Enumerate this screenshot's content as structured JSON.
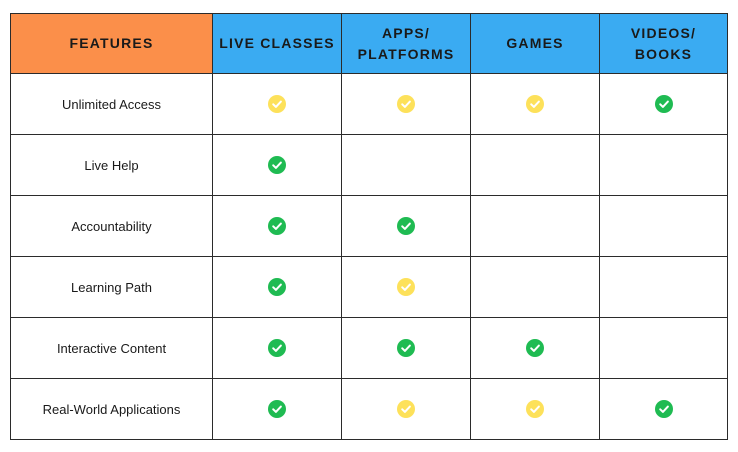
{
  "colors": {
    "features_header_bg": "#fb8f4a",
    "column_header_bg": "#3aabf2",
    "check_green": "#1fbb52",
    "check_yellow": "#fde15a"
  },
  "table": {
    "headers": [
      "FEATURES",
      "LIVE CLASSES",
      "APPS/\nPLATFORMS",
      "GAMES",
      "VIDEOS/\nBOOKS"
    ],
    "rows": [
      {
        "feature": "Unlimited Access",
        "marks": [
          "yellow",
          "yellow",
          "yellow",
          "green"
        ]
      },
      {
        "feature": "Live Help",
        "marks": [
          "green",
          "",
          "",
          ""
        ]
      },
      {
        "feature": "Accountability",
        "marks": [
          "green",
          "green",
          "",
          ""
        ]
      },
      {
        "feature": "Learning Path",
        "marks": [
          "green",
          "yellow",
          "",
          ""
        ]
      },
      {
        "feature": "Interactive Content",
        "marks": [
          "green",
          "green",
          "green",
          ""
        ]
      },
      {
        "feature": "Real-World Applications",
        "marks": [
          "green",
          "yellow",
          "yellow",
          "green"
        ]
      }
    ]
  },
  "icons": {
    "mark": "check-circle-icon"
  }
}
